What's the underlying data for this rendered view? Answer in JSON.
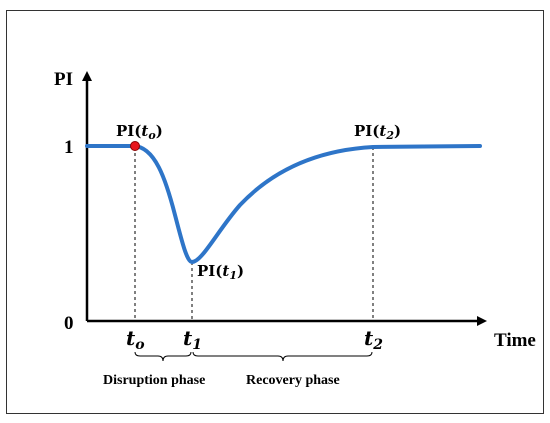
{
  "y_axis": {
    "label": "PI",
    "ticks": {
      "top": "1",
      "origin": "0"
    }
  },
  "x_axis": {
    "label": "Time"
  },
  "times": {
    "t0": {
      "base": "t",
      "sub": "o"
    },
    "t1": {
      "base": "t",
      "sub": "1"
    },
    "t2": {
      "base": "t",
      "sub": "2"
    }
  },
  "points": {
    "pi_t0": {
      "prefix": "PI(",
      "base": "t",
      "sub": "o",
      "suffix": ")"
    },
    "pi_t1": {
      "prefix": "PI(",
      "base": "t",
      "sub": "1",
      "suffix": ")"
    },
    "pi_t2": {
      "prefix": "PI(",
      "base": "t",
      "sub": "2",
      "suffix": ")"
    }
  },
  "phases": {
    "disruption": "Disruption phase",
    "recovery": "Recovery phase"
  },
  "colors": {
    "curve": "#2e75c8",
    "marker": "#e8141b",
    "axis": "#000000",
    "frame": "#333333"
  }
}
